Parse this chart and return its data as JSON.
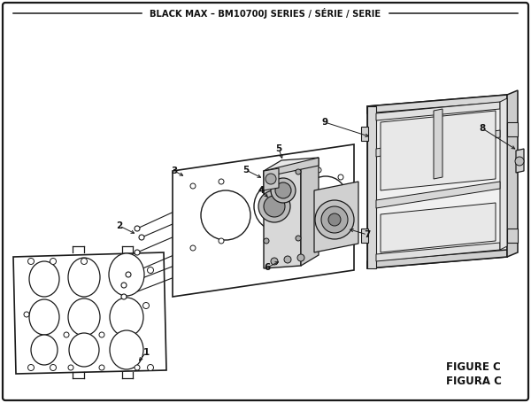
{
  "title": "BLACK MAX – BM10700J SERIES / SÉRIE / SERIE",
  "figure_label": "FIGURE C",
  "figura_label": "FIGURA C",
  "bg_color": "#ffffff",
  "line_color": "#1a1a1a",
  "text_color": "#111111",
  "lw_main": 1.2,
  "lw_thin": 0.7
}
